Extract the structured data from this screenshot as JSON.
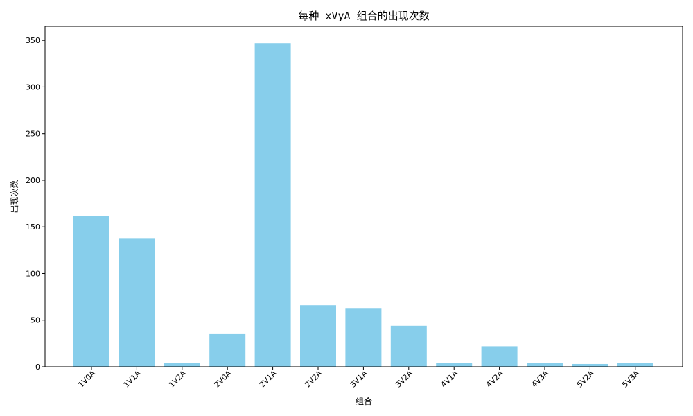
{
  "chart_data": {
    "type": "bar",
    "title": "每种 xVyA 组合的出现次数",
    "xlabel": "组合",
    "ylabel": "出现次数",
    "categories": [
      "1V0A",
      "1V1A",
      "1V2A",
      "2V0A",
      "2V1A",
      "2V2A",
      "3V1A",
      "3V2A",
      "4V1A",
      "4V2A",
      "4V3A",
      "5V2A",
      "5V3A"
    ],
    "values": [
      162,
      138,
      4,
      35,
      347,
      66,
      63,
      44,
      4,
      22,
      4,
      3,
      4
    ],
    "ylim": [
      0,
      365
    ],
    "yticks": [
      0,
      50,
      100,
      150,
      200,
      250,
      300,
      350
    ],
    "bar_color": "#87ceeb",
    "grid": false,
    "legend": "none",
    "xtick_rotation": 45
  }
}
